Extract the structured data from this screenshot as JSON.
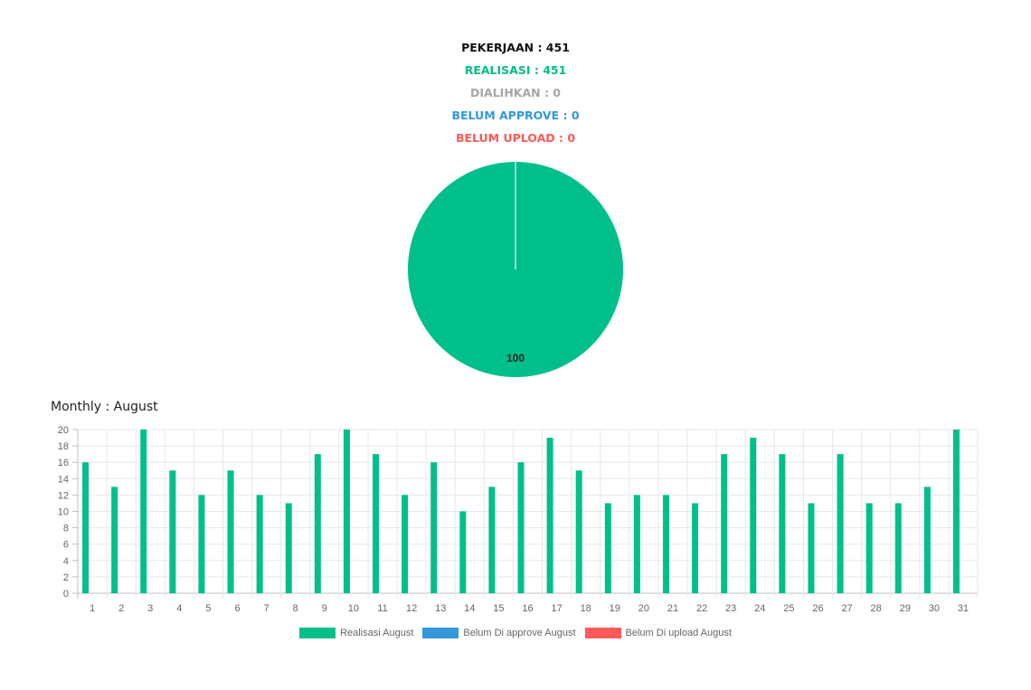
{
  "summary": {
    "pekerjaan": "PEKERJAAN : 451",
    "realisasi": "REALISASI : 451",
    "dialihkan": "DIALIHKAN : 0",
    "belum_approve": "BELUM APPROVE : 0",
    "belum_upload": "BELUM UPLOAD : 0"
  },
  "colors": {
    "black": "#111111",
    "green": "#00bf8a",
    "gray": "#a6a6a6",
    "blue": "#3498db",
    "red": "#ff5a5a"
  },
  "monthly_title": "Monthly : August",
  "chart_data": [
    {
      "type": "pie",
      "slices": [
        {
          "value": 100,
          "color": "#00bf8a",
          "label": "100"
        }
      ]
    },
    {
      "type": "bar",
      "categories": [
        "1",
        "2",
        "3",
        "4",
        "5",
        "6",
        "7",
        "8",
        "9",
        "10",
        "11",
        "12",
        "13",
        "14",
        "15",
        "16",
        "17",
        "18",
        "19",
        "20",
        "21",
        "22",
        "23",
        "24",
        "25",
        "26",
        "27",
        "28",
        "29",
        "30",
        "31"
      ],
      "series": [
        {
          "name": "Realisasi August",
          "color": "#00bf8a",
          "values": [
            16,
            13,
            20,
            15,
            12,
            15,
            12,
            11,
            17,
            20,
            17,
            12,
            16,
            10,
            13,
            16,
            19,
            15,
            11,
            12,
            12,
            11,
            17,
            19,
            17,
            11,
            17,
            11,
            11,
            13,
            20
          ]
        },
        {
          "name": "Belum Di approve August",
          "color": "#3498db",
          "values": [
            0,
            0,
            0,
            0,
            0,
            0,
            0,
            0,
            0,
            0,
            0,
            0,
            0,
            0,
            0,
            0,
            0,
            0,
            0,
            0,
            0,
            0,
            0,
            0,
            0,
            0,
            0,
            0,
            0,
            0,
            0
          ]
        },
        {
          "name": "Belum Di upload August",
          "color": "#ff5a5a",
          "values": [
            0,
            0,
            0,
            0,
            0,
            0,
            0,
            0,
            0,
            0,
            0,
            0,
            0,
            0,
            0,
            0,
            0,
            0,
            0,
            0,
            0,
            0,
            0,
            0,
            0,
            0,
            0,
            0,
            0,
            0,
            0
          ]
        }
      ],
      "ylim": [
        0,
        20
      ],
      "yticks": [
        0,
        2,
        4,
        6,
        8,
        10,
        12,
        14,
        16,
        18,
        20
      ],
      "grid": true,
      "legend": "bottom"
    }
  ]
}
